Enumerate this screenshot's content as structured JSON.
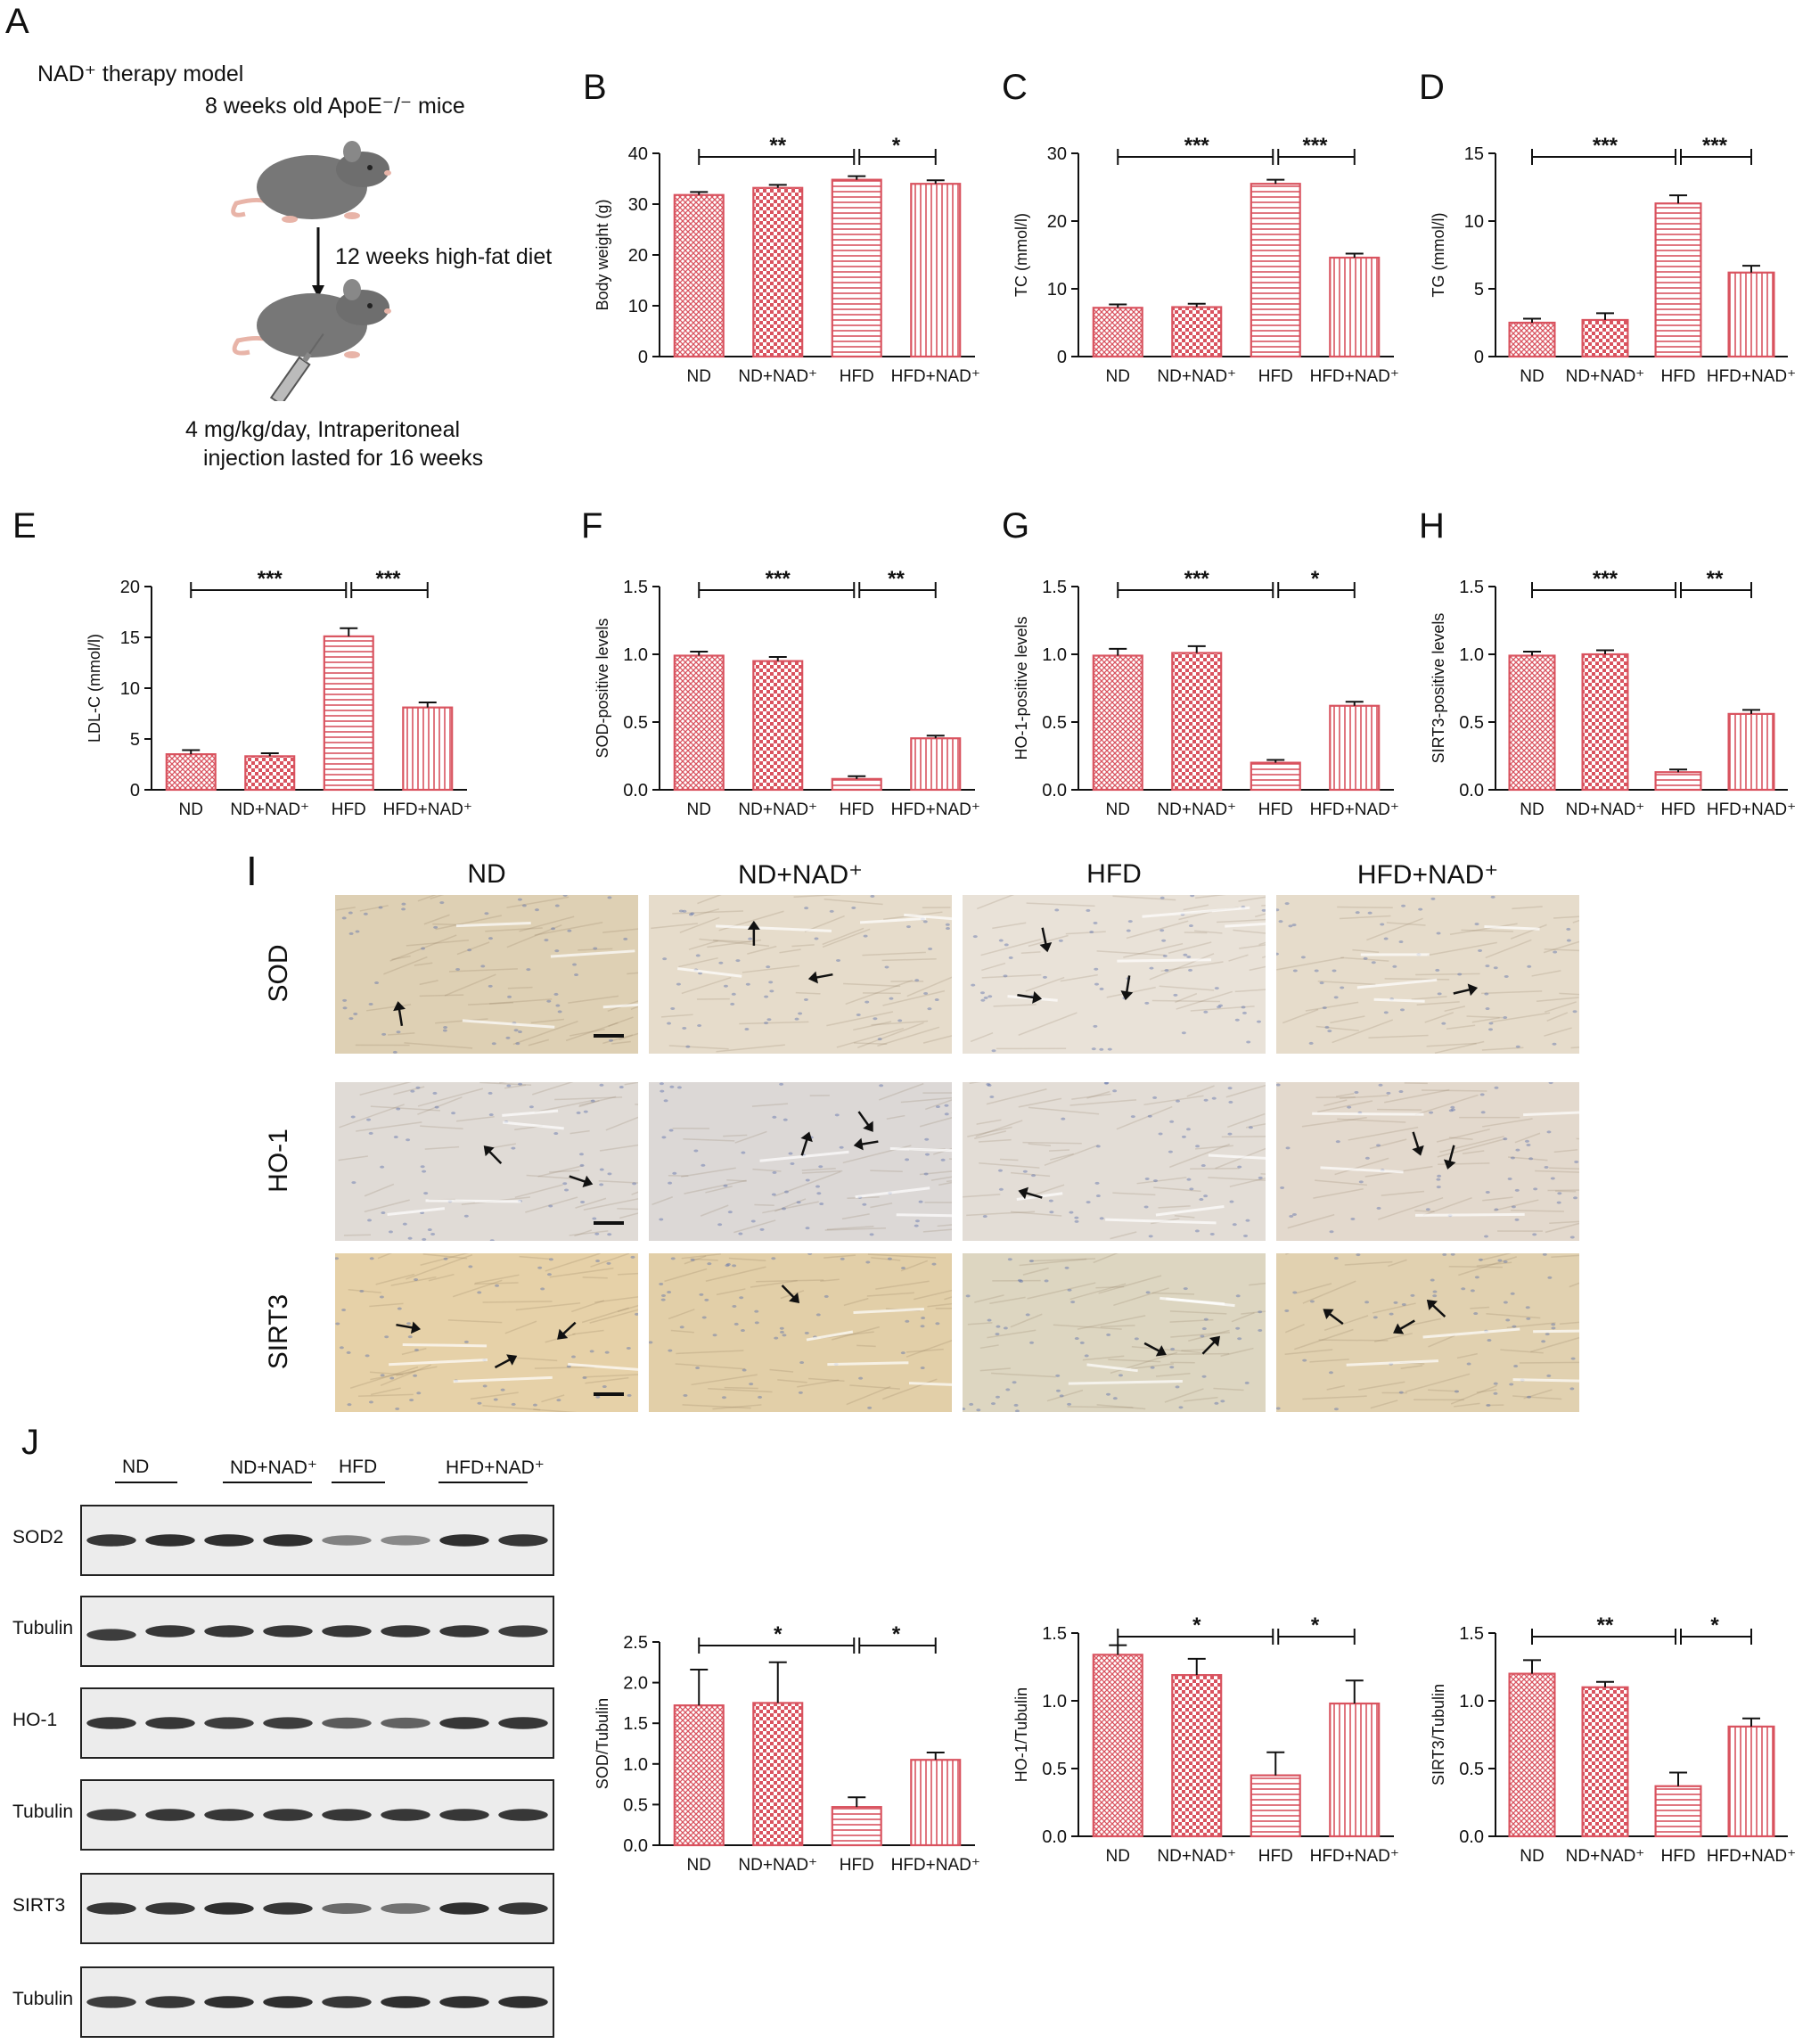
{
  "panel_letters": [
    "A",
    "B",
    "C",
    "D",
    "E",
    "F",
    "G",
    "H",
    "I",
    "J"
  ],
  "panel_a": {
    "title": "NAD⁺ therapy model",
    "mice": "8 weeks old ApoE⁻/⁻ mice",
    "diet": "12 weeks high-fat diet",
    "injection_line1": "4 mg/kg/day, Intraperitoneal",
    "injection_line2": "injection lasted for 16 weeks"
  },
  "colors": {
    "bar": "#d9535f",
    "axis": "#111111",
    "arrow": "#111111"
  },
  "chart_data": [
    {
      "id": "B",
      "type": "bar",
      "ylabel": "Body weight (g)",
      "ylim": [
        0,
        40
      ],
      "yticks": [
        0,
        10,
        20,
        30,
        40
      ],
      "categories": [
        "ND",
        "ND+NAD⁺",
        "HFD",
        "HFD+NAD⁺"
      ],
      "values": [
        31.8,
        33.2,
        34.8,
        34.0
      ],
      "errors": [
        0.6,
        0.6,
        0.7,
        0.7
      ],
      "patterns": [
        "grid",
        "check",
        "hstripe",
        "vstripe"
      ],
      "significance": [
        {
          "from": 0,
          "to": 2,
          "label": "**"
        },
        {
          "from": 2,
          "to": 3,
          "label": "*"
        }
      ]
    },
    {
      "id": "C",
      "type": "bar",
      "ylabel": "TC (mmol/l)",
      "ylim": [
        0,
        30
      ],
      "yticks": [
        0,
        10,
        20,
        30
      ],
      "categories": [
        "ND",
        "ND+NAD⁺",
        "HFD",
        "HFD+NAD⁺"
      ],
      "values": [
        7.2,
        7.3,
        25.5,
        14.6
      ],
      "errors": [
        0.5,
        0.5,
        0.6,
        0.6
      ],
      "patterns": [
        "grid",
        "check",
        "hstripe",
        "vstripe"
      ],
      "significance": [
        {
          "from": 0,
          "to": 2,
          "label": "***"
        },
        {
          "from": 2,
          "to": 3,
          "label": "***"
        }
      ]
    },
    {
      "id": "D",
      "type": "bar",
      "ylabel": "TG (mmol/l)",
      "ylim": [
        0,
        15
      ],
      "yticks": [
        0,
        5,
        10,
        15
      ],
      "categories": [
        "ND",
        "ND+NAD⁺",
        "HFD",
        "HFD+NAD⁺"
      ],
      "values": [
        2.5,
        2.7,
        11.3,
        6.2
      ],
      "errors": [
        0.3,
        0.5,
        0.6,
        0.5
      ],
      "patterns": [
        "grid",
        "check",
        "hstripe",
        "vstripe"
      ],
      "significance": [
        {
          "from": 0,
          "to": 2,
          "label": "***"
        },
        {
          "from": 2,
          "to": 3,
          "label": "***"
        }
      ]
    },
    {
      "id": "E",
      "type": "bar",
      "ylabel": "LDL-C (mmol/l)",
      "ylim": [
        0,
        20
      ],
      "yticks": [
        0,
        5,
        10,
        15,
        20
      ],
      "categories": [
        "ND",
        "ND+NAD⁺",
        "HFD",
        "HFD+NAD⁺"
      ],
      "values": [
        3.5,
        3.3,
        15.1,
        8.1
      ],
      "errors": [
        0.4,
        0.3,
        0.8,
        0.5
      ],
      "patterns": [
        "grid",
        "check",
        "hstripe",
        "vstripe"
      ],
      "significance": [
        {
          "from": 0,
          "to": 2,
          "label": "***"
        },
        {
          "from": 2,
          "to": 3,
          "label": "***"
        }
      ]
    },
    {
      "id": "F",
      "type": "bar",
      "ylabel": "SOD-positive levels",
      "ylim": [
        0,
        1.5
      ],
      "yticks": [
        0.0,
        0.5,
        1.0,
        1.5
      ],
      "categories": [
        "ND",
        "ND+NAD⁺",
        "HFD",
        "HFD+NAD⁺"
      ],
      "values": [
        0.99,
        0.95,
        0.08,
        0.38
      ],
      "errors": [
        0.03,
        0.03,
        0.02,
        0.02
      ],
      "patterns": [
        "grid",
        "check",
        "hstripe",
        "vstripe"
      ],
      "significance": [
        {
          "from": 0,
          "to": 2,
          "label": "***"
        },
        {
          "from": 2,
          "to": 3,
          "label": "**"
        }
      ]
    },
    {
      "id": "G",
      "type": "bar",
      "ylabel": "HO-1-positive levels",
      "ylim": [
        0,
        1.5
      ],
      "yticks": [
        0.0,
        0.5,
        1.0,
        1.5
      ],
      "categories": [
        "ND",
        "ND+NAD⁺",
        "HFD",
        "HFD+NAD⁺"
      ],
      "values": [
        0.99,
        1.01,
        0.2,
        0.62
      ],
      "errors": [
        0.05,
        0.05,
        0.02,
        0.03
      ],
      "patterns": [
        "grid",
        "check",
        "hstripe",
        "vstripe"
      ],
      "significance": [
        {
          "from": 0,
          "to": 2,
          "label": "***"
        },
        {
          "from": 2,
          "to": 3,
          "label": "*"
        }
      ]
    },
    {
      "id": "H",
      "type": "bar",
      "ylabel": "SIRT3-positive levels",
      "ylim": [
        0,
        1.5
      ],
      "yticks": [
        0.0,
        0.5,
        1.0,
        1.5
      ],
      "categories": [
        "ND",
        "ND+NAD⁺",
        "HFD",
        "HFD+NAD⁺"
      ],
      "values": [
        0.99,
        1.0,
        0.13,
        0.56
      ],
      "errors": [
        0.03,
        0.03,
        0.02,
        0.03
      ],
      "patterns": [
        "grid",
        "check",
        "hstripe",
        "vstripe"
      ],
      "significance": [
        {
          "from": 0,
          "to": 2,
          "label": "***"
        },
        {
          "from": 2,
          "to": 3,
          "label": "**"
        }
      ]
    },
    {
      "id": "J1",
      "type": "bar",
      "ylabel": "SOD/Tubulin",
      "ylim": [
        0,
        2.5
      ],
      "yticks": [
        0.0,
        0.5,
        1.0,
        1.5,
        2.0,
        2.5
      ],
      "categories": [
        "ND",
        "ND+NAD⁺",
        "HFD",
        "HFD+NAD⁺"
      ],
      "values": [
        1.72,
        1.75,
        0.47,
        1.05
      ],
      "errors": [
        0.44,
        0.5,
        0.12,
        0.09
      ],
      "patterns": [
        "grid",
        "check",
        "hstripe",
        "vstripe"
      ],
      "significance": [
        {
          "from": 0,
          "to": 2,
          "label": "*"
        },
        {
          "from": 2,
          "to": 3,
          "label": "*"
        }
      ]
    },
    {
      "id": "J2",
      "type": "bar",
      "ylabel": "HO-1/Tubulin",
      "ylim": [
        0,
        1.5
      ],
      "yticks": [
        0.0,
        0.5,
        1.0,
        1.5
      ],
      "categories": [
        "ND",
        "ND+NAD⁺",
        "HFD",
        "HFD+NAD⁺"
      ],
      "values": [
        1.34,
        1.19,
        0.45,
        0.98
      ],
      "errors": [
        0.07,
        0.12,
        0.17,
        0.17
      ],
      "patterns": [
        "grid",
        "check",
        "hstripe",
        "vstripe"
      ],
      "significance": [
        {
          "from": 0,
          "to": 2,
          "label": "*"
        },
        {
          "from": 2,
          "to": 3,
          "label": "*"
        }
      ]
    },
    {
      "id": "J3",
      "type": "bar",
      "ylabel": "SIRT3/Tubulin",
      "ylim": [
        0,
        1.5
      ],
      "yticks": [
        0.0,
        0.5,
        1.0,
        1.5
      ],
      "categories": [
        "ND",
        "ND+NAD⁺",
        "HFD",
        "HFD+NAD⁺"
      ],
      "values": [
        1.2,
        1.1,
        0.37,
        0.81
      ],
      "errors": [
        0.1,
        0.04,
        0.1,
        0.06
      ],
      "patterns": [
        "grid",
        "check",
        "hstripe",
        "vstripe"
      ],
      "significance": [
        {
          "from": 0,
          "to": 2,
          "label": "**"
        },
        {
          "from": 2,
          "to": 3,
          "label": "*"
        }
      ]
    }
  ],
  "panel_i": {
    "columns": [
      "ND",
      "ND+NAD⁺",
      "HFD",
      "HFD+NAD⁺"
    ],
    "rows": [
      {
        "label": "SOD",
        "colors": [
          "#ded0b4",
          "#e6dccb",
          "#e9e2d8",
          "#e6dccb"
        ]
      },
      {
        "label": "HO-1",
        "colors": [
          "#e0dbd6",
          "#dcd8d6",
          "#e3ddd6",
          "#e3d9cd"
        ]
      },
      {
        "label": "SIRT3",
        "colors": [
          "#e6d1a8",
          "#e2cfa8",
          "#ddd6c1",
          "#e1d1b0"
        ]
      }
    ]
  },
  "panel_j": {
    "groups": [
      "ND",
      "ND+NAD⁺",
      "HFD",
      "HFD+NAD⁺"
    ],
    "blots": [
      {
        "label": "SOD2",
        "intensity": [
          0.85,
          0.9,
          0.9,
          0.9,
          0.35,
          0.3,
          0.9,
          0.85
        ]
      },
      {
        "label": "Tubulin",
        "intensity": [
          0.8,
          0.85,
          0.85,
          0.85,
          0.85,
          0.85,
          0.85,
          0.8
        ]
      },
      {
        "label": "HO-1",
        "intensity": [
          0.85,
          0.85,
          0.8,
          0.8,
          0.6,
          0.55,
          0.85,
          0.85
        ]
      },
      {
        "label": "Tubulin",
        "intensity": [
          0.8,
          0.85,
          0.85,
          0.85,
          0.85,
          0.85,
          0.85,
          0.85
        ]
      },
      {
        "label": "SIRT3",
        "intensity": [
          0.85,
          0.85,
          0.9,
          0.85,
          0.5,
          0.45,
          0.9,
          0.85
        ]
      },
      {
        "label": "Tubulin",
        "intensity": [
          0.8,
          0.85,
          0.9,
          0.9,
          0.85,
          0.9,
          0.9,
          0.9
        ]
      }
    ]
  }
}
